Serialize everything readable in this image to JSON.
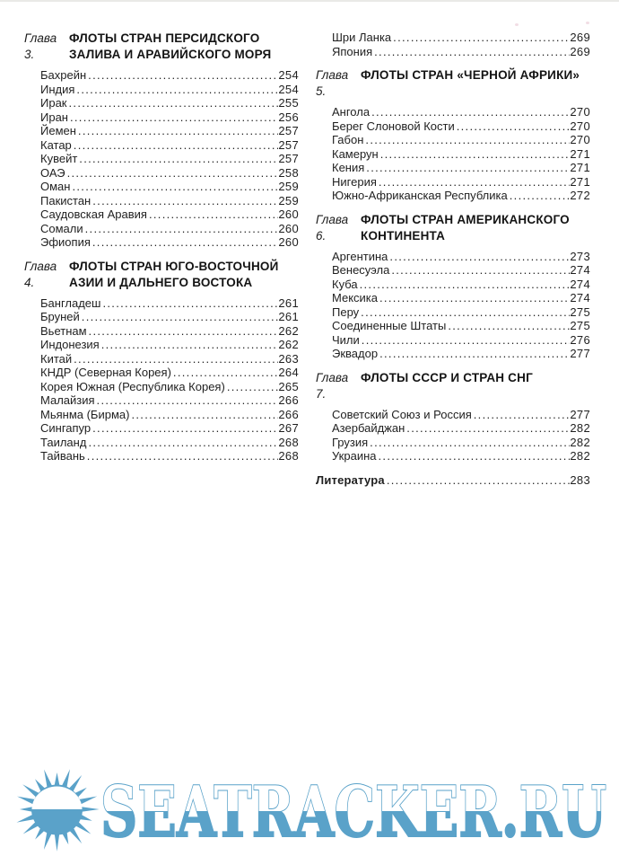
{
  "page": {
    "type": "book-table-of-contents",
    "language": "ru"
  },
  "colors": {
    "accent_blue": "#5aa2c9",
    "text": "#1f1f1f"
  },
  "toc": {
    "columns": [
      {
        "sections": [
          {
            "chapter": {
              "label": "Глава 3.",
              "title": "ФЛОТЫ СТРАН ПЕРСИДСКОГО\nЗАЛИВА И АРАВИЙСКОГО МОРЯ"
            },
            "entries": [
              {
                "label": "Бахрейн",
                "page": "254"
              },
              {
                "label": "Индия",
                "page": "254"
              },
              {
                "label": "Ирак",
                "page": "255"
              },
              {
                "label": "Иран",
                "page": "256"
              },
              {
                "label": "Йемен",
                "page": "257"
              },
              {
                "label": "Катар",
                "page": "257"
              },
              {
                "label": "Кувейт",
                "page": "257"
              },
              {
                "label": "ОАЭ",
                "page": "258"
              },
              {
                "label": "Оман",
                "page": "259"
              },
              {
                "label": "Пакистан",
                "page": "259"
              },
              {
                "label": "Саудовская Аравия",
                "page": "260"
              },
              {
                "label": "Сомали",
                "page": "260"
              },
              {
                "label": "Эфиопия",
                "page": "260"
              }
            ]
          },
          {
            "chapter": {
              "label": "Глава 4.",
              "title": "ФЛОТЫ СТРАН ЮГО-ВОСТОЧНОЙ\nАЗИИ И ДАЛЬНЕГО ВОСТОКА"
            },
            "entries": [
              {
                "label": "Бангладеш",
                "page": "261"
              },
              {
                "label": "Бруней",
                "page": "261"
              },
              {
                "label": "Вьетнам",
                "page": "262"
              },
              {
                "label": "Индонезия",
                "page": "262"
              },
              {
                "label": "Китай",
                "page": "263"
              },
              {
                "label": "КНДР (Северная Корея)",
                "page": "264"
              },
              {
                "label": "Корея Южная (Республика Корея)",
                "page": "265"
              },
              {
                "label": "Малайзия",
                "page": "266"
              },
              {
                "label": "Мьянма (Бирма)",
                "page": "266"
              },
              {
                "label": "Сингапур",
                "page": "267"
              },
              {
                "label": "Таиланд",
                "page": "268"
              },
              {
                "label": "Тайвань",
                "page": "268"
              }
            ]
          }
        ]
      },
      {
        "sections": [
          {
            "chapter": null,
            "entries": [
              {
                "label": "Шри Ланка",
                "page": "269"
              },
              {
                "label": "Япония",
                "page": "269"
              }
            ]
          },
          {
            "chapter": {
              "label": "Глава 5.",
              "title": "ФЛОТЫ СТРАН «ЧЕРНОЙ АФРИКИ»"
            },
            "entries": [
              {
                "label": "Ангола",
                "page": "270"
              },
              {
                "label": "Берег Слоновой Кости",
                "page": "270"
              },
              {
                "label": "Габон",
                "page": "270"
              },
              {
                "label": "Камерун",
                "page": "271"
              },
              {
                "label": "Кения",
                "page": "271"
              },
              {
                "label": "Нигерия",
                "page": "271"
              },
              {
                "label": "Южно-Африканская Республика",
                "page": "272"
              }
            ]
          },
          {
            "chapter": {
              "label": "Глава 6.",
              "title": "ФЛОТЫ СТРАН АМЕРИКАНСКОГО\nКОНТИНЕНТА"
            },
            "entries": [
              {
                "label": "Аргентина",
                "page": "273"
              },
              {
                "label": "Венесуэла",
                "page": "274"
              },
              {
                "label": "Куба",
                "page": "274"
              },
              {
                "label": "Мексика",
                "page": "274"
              },
              {
                "label": "Перу",
                "page": "275"
              },
              {
                "label": "Соединенные Штаты",
                "page": "275"
              },
              {
                "label": "Чили",
                "page": "276"
              },
              {
                "label": "Эквадор",
                "page": "277"
              }
            ]
          },
          {
            "chapter": {
              "label": "Глава 7.",
              "title": "ФЛОТЫ СССР И СТРАН СНГ"
            },
            "entries": [
              {
                "label": "Советский Союз и Россия",
                "page": "277"
              },
              {
                "label": "Азербайджан",
                "page": "282"
              },
              {
                "label": "Грузия",
                "page": "282"
              },
              {
                "label": "Украина",
                "page": "282"
              }
            ]
          },
          {
            "chapter": null,
            "entries": [
              {
                "label": "Литература",
                "page": "283",
                "bold": true,
                "flush": true
              }
            ]
          }
        ]
      }
    ]
  },
  "watermark": {
    "text": "SEATRACKER.RU",
    "icon": "sun-icon",
    "color": "#5aa2c9"
  }
}
